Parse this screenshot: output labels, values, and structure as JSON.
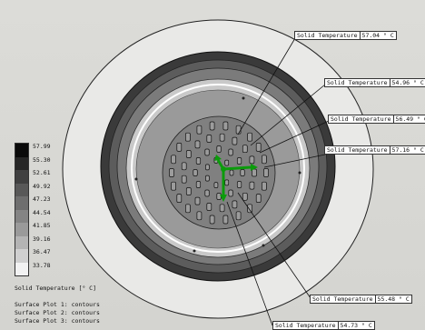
{
  "legend": {
    "title": "Solid Temperature [° C]",
    "ticks": [
      "57.99",
      "55.30",
      "52.61",
      "49.92",
      "47.23",
      "44.54",
      "41.85",
      "39.16",
      "36.47",
      "33.78"
    ],
    "colors": [
      "#0a0a0a",
      "#262626",
      "#404040",
      "#585858",
      "#6e6e6e",
      "#848484",
      "#9a9a9a",
      "#b4b4b4",
      "#d0d0d0",
      "#f2f2f2"
    ]
  },
  "surface_plots": [
    "Surface Plot 1: contours",
    "Surface Plot 2: contours",
    "Surface Plot 3: contours"
  ],
  "probes": [
    {
      "label": "Solid Temperature",
      "value": "57.04 ° C"
    },
    {
      "label": "Solid Temperature",
      "value": "54.96 ° C"
    },
    {
      "label": "Solid Temperature",
      "value": "56.49 ° C"
    },
    {
      "label": "Solid Temperature",
      "value": "57.16 ° C"
    },
    {
      "label": "Solid Temperature",
      "value": "55.48 ° C"
    },
    {
      "label": "Solid Temperature",
      "value": "54.73 ° C"
    }
  ]
}
